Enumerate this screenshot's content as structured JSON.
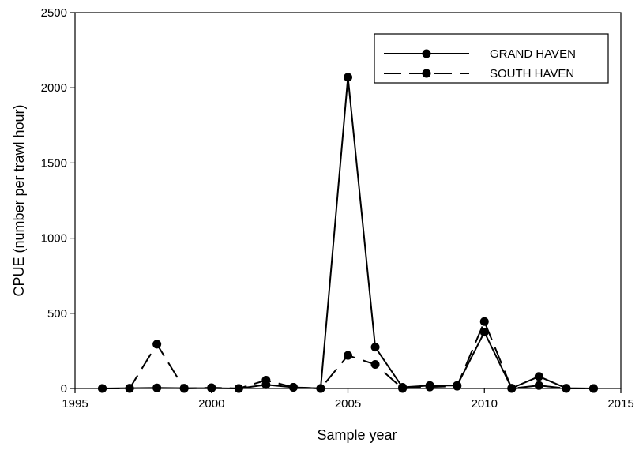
{
  "chart_data": {
    "type": "line",
    "xlabel": "Sample year",
    "ylabel": "CPUE (number per trawl hour)",
    "xlim": [
      1995,
      2015
    ],
    "ylim": [
      0,
      2500
    ],
    "xticks": [
      1995,
      2000,
      2005,
      2010,
      2015
    ],
    "yticks": [
      0,
      500,
      1000,
      1500,
      2000,
      2500
    ],
    "grid": false,
    "legend_position": "top-right",
    "series": [
      {
        "name": "GRAND HAVEN",
        "line_style": "solid",
        "color": "#000000",
        "x": [
          1996,
          1997,
          1998,
          1999,
          2000,
          2001,
          2002,
          2003,
          2004,
          2005,
          2006,
          2007,
          2008,
          2009,
          2010,
          2011,
          2012,
          2013,
          2014
        ],
        "y": [
          0,
          2,
          4,
          2,
          2,
          0,
          25,
          8,
          0,
          2070,
          275,
          8,
          20,
          20,
          375,
          2,
          80,
          2,
          0
        ]
      },
      {
        "name": "SOUTH HAVEN",
        "line_style": "dashed",
        "color": "#000000",
        "x": [
          1996,
          1997,
          1998,
          1999,
          2000,
          2001,
          2002,
          2003,
          2004,
          2005,
          2006,
          2007,
          2008,
          2009,
          2010,
          2011,
          2012,
          2013,
          2014
        ],
        "y": [
          0,
          0,
          295,
          0,
          5,
          0,
          55,
          8,
          0,
          220,
          160,
          0,
          10,
          15,
          445,
          0,
          20,
          0,
          0
        ]
      }
    ]
  }
}
